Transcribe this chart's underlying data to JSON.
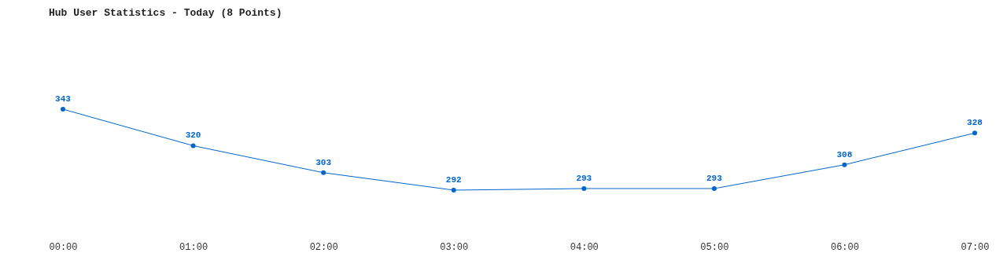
{
  "chart_data": {
    "type": "line",
    "title": "Hub User Statistics - Today (8 Points)",
    "categories": [
      "00:00",
      "01:00",
      "02:00",
      "03:00",
      "04:00",
      "05:00",
      "06:00",
      "07:00"
    ],
    "values": [
      343,
      320,
      303,
      292,
      293,
      293,
      308,
      328
    ],
    "color": "#0066cc",
    "marker": "circle",
    "data_labels": true
  }
}
